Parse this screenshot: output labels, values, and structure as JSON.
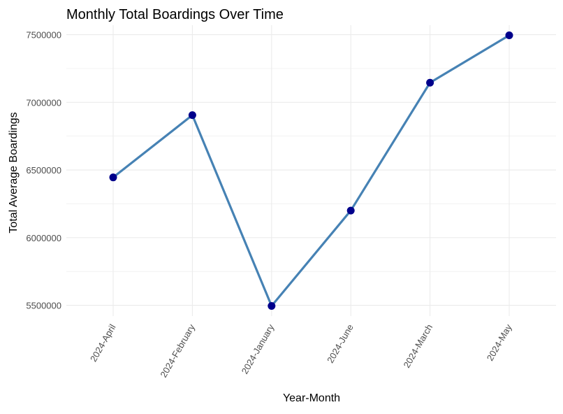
{
  "chart_data": {
    "type": "line",
    "title": "Monthly Total Boardings Over Time",
    "xlabel": "Year-Month",
    "ylabel": "Total Average Boardings",
    "categories": [
      "2024-April",
      "2024-February",
      "2024-January",
      "2024-June",
      "2024-March",
      "2024-May"
    ],
    "series": [
      {
        "values": [
          6445000,
          6905000,
          5495000,
          6200000,
          7145000,
          7495000
        ],
        "line_color": "#4682b4",
        "point_color": "#00008b"
      }
    ],
    "y_ticks": [
      5500000,
      6000000,
      6500000,
      7000000,
      7500000
    ],
    "y_tick_labels": [
      "5500000",
      "6000000",
      "6500000",
      "7000000",
      "7500000"
    ],
    "ylim": [
      5420000,
      7570000
    ],
    "grid": true,
    "grid_color": "#ebebeb",
    "text_color": "#4d4d4d",
    "title_color": "#000000"
  }
}
